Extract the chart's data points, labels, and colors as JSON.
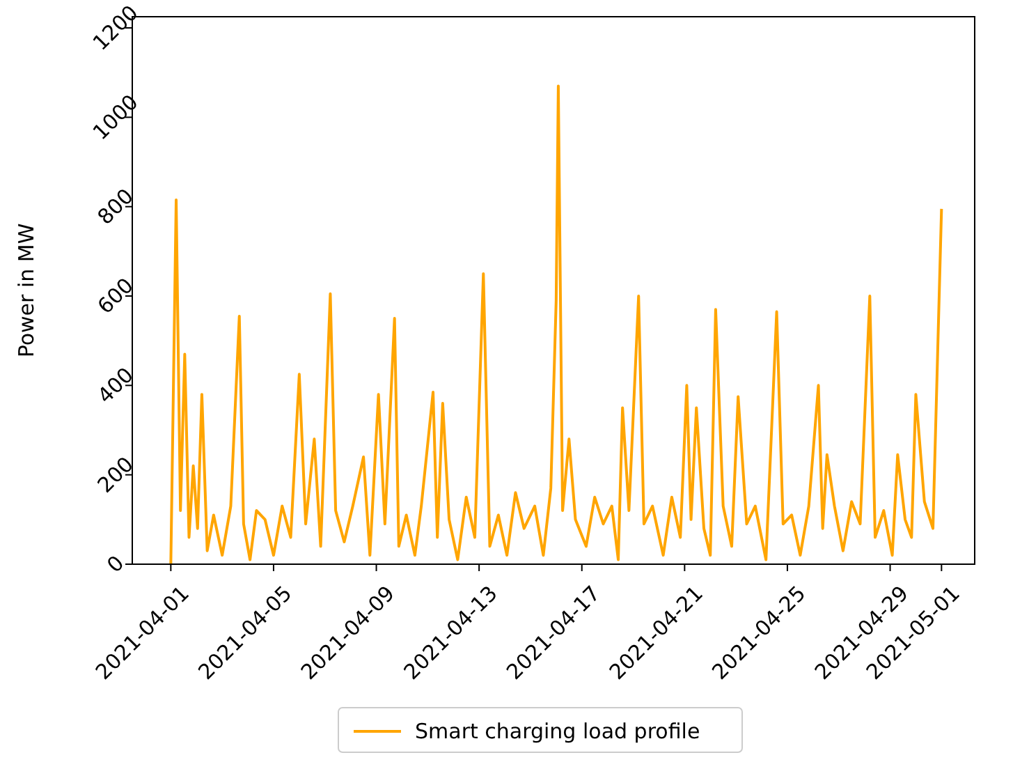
{
  "chart_data": {
    "type": "line",
    "ylabel": "Power in MW",
    "xlim": [
      "2021-03-30T12:00",
      "2021-05-02T07:00"
    ],
    "ylim": [
      0,
      1225
    ],
    "xticks": [
      "2021-04-01",
      "2021-04-05",
      "2021-04-09",
      "2021-04-13",
      "2021-04-17",
      "2021-04-21",
      "2021-04-25",
      "2021-04-29",
      "2021-05-01"
    ],
    "yticks": [
      0,
      200,
      400,
      600,
      800,
      1000,
      1200
    ],
    "grid": false,
    "legend": "bottom",
    "marker": "none",
    "line_style": "solid",
    "series": [
      {
        "name": "Smart charging load profile",
        "color": "#ffa500",
        "x": [
          "2021-04-01T00:00",
          "2021-04-01T05:00",
          "2021-04-01T09:00",
          "2021-04-01T13:00",
          "2021-04-01T17:00",
          "2021-04-01T21:00",
          "2021-04-02T01:00",
          "2021-04-02T05:00",
          "2021-04-02T10:00",
          "2021-04-02T16:00",
          "2021-04-03T00:00",
          "2021-04-03T08:00",
          "2021-04-03T16:00",
          "2021-04-03T20:00",
          "2021-04-04T02:00",
          "2021-04-04T08:00",
          "2021-04-04T16:00",
          "2021-04-05T00:00",
          "2021-04-05T08:00",
          "2021-04-05T16:00",
          "2021-04-06T00:00",
          "2021-04-06T06:00",
          "2021-04-06T14:00",
          "2021-04-06T20:00",
          "2021-04-07T05:00",
          "2021-04-07T10:00",
          "2021-04-07T18:00",
          "2021-04-08T02:00",
          "2021-04-08T12:00",
          "2021-04-08T18:00",
          "2021-04-09T02:00",
          "2021-04-09T08:00",
          "2021-04-09T17:00",
          "2021-04-09T21:00",
          "2021-04-10T04:00",
          "2021-04-10T12:00",
          "2021-04-10T18:00",
          "2021-04-11T05:00",
          "2021-04-11T09:00",
          "2021-04-11T14:00",
          "2021-04-11T20:00",
          "2021-04-12T04:00",
          "2021-04-12T12:00",
          "2021-04-12T20:00",
          "2021-04-13T04:00",
          "2021-04-13T10:00",
          "2021-04-13T18:00",
          "2021-04-14T02:00",
          "2021-04-14T10:00",
          "2021-04-14T18:00",
          "2021-04-15T04:00",
          "2021-04-15T12:00",
          "2021-04-15T19:00",
          "2021-04-16T00:00",
          "2021-04-16T02:00",
          "2021-04-16T06:00",
          "2021-04-16T12:00",
          "2021-04-16T18:00",
          "2021-04-17T04:00",
          "2021-04-17T12:00",
          "2021-04-17T20:00",
          "2021-04-18T04:00",
          "2021-04-18T10:00",
          "2021-04-18T14:00",
          "2021-04-18T20:00",
          "2021-04-19T05:00",
          "2021-04-19T10:00",
          "2021-04-19T18:00",
          "2021-04-20T04:00",
          "2021-04-20T12:00",
          "2021-04-20T20:00",
          "2021-04-21T02:00",
          "2021-04-21T06:00",
          "2021-04-21T11:00",
          "2021-04-21T18:00",
          "2021-04-22T00:00",
          "2021-04-22T05:00",
          "2021-04-22T12:00",
          "2021-04-22T20:00",
          "2021-04-23T02:00",
          "2021-04-23T10:00",
          "2021-04-23T18:00",
          "2021-04-24T04:00",
          "2021-04-24T14:00",
          "2021-04-24T20:00",
          "2021-04-25T04:00",
          "2021-04-25T12:00",
          "2021-04-25T20:00",
          "2021-04-26T05:00",
          "2021-04-26T09:00",
          "2021-04-26T13:00",
          "2021-04-26T20:00",
          "2021-04-27T04:00",
          "2021-04-27T12:00",
          "2021-04-27T20:00",
          "2021-04-28T05:00",
          "2021-04-28T10:00",
          "2021-04-28T18:00",
          "2021-04-29T02:00",
          "2021-04-29T07:00",
          "2021-04-29T14:00",
          "2021-04-29T20:00",
          "2021-04-30T00:00",
          "2021-04-30T08:00",
          "2021-04-30T16:00",
          "2021-05-01T00:00"
        ],
        "values": [
          0,
          815,
          120,
          470,
          60,
          220,
          80,
          380,
          30,
          110,
          20,
          130,
          555,
          90,
          10,
          120,
          100,
          20,
          130,
          60,
          425,
          90,
          280,
          40,
          605,
          120,
          50,
          130,
          240,
          20,
          380,
          90,
          550,
          40,
          110,
          20,
          130,
          385,
          60,
          360,
          100,
          10,
          150,
          60,
          650,
          40,
          110,
          20,
          160,
          80,
          130,
          20,
          170,
          590,
          1070,
          120,
          280,
          100,
          40,
          150,
          90,
          130,
          10,
          350,
          120,
          600,
          90,
          130,
          20,
          150,
          60,
          400,
          100,
          350,
          80,
          20,
          570,
          130,
          40,
          375,
          90,
          130,
          10,
          565,
          90,
          110,
          20,
          130,
          400,
          80,
          245,
          130,
          30,
          140,
          90,
          600,
          60,
          120,
          20,
          245,
          100,
          60,
          380,
          140,
          80,
          795
        ]
      }
    ]
  }
}
